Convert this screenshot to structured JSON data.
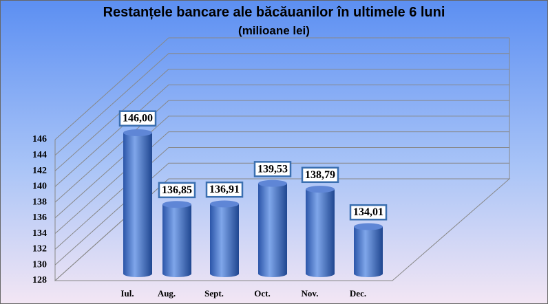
{
  "chart_data": {
    "type": "bar",
    "title": "Restanțele bancare ale băcăuanilor în ultimele 6 luni",
    "subtitle": "(milioane lei)",
    "categories": [
      "Iul.",
      "Aug.",
      "Sept.",
      "Oct.",
      "Nov.",
      "Dec."
    ],
    "values": [
      146.0,
      136.85,
      136.91,
      139.53,
      138.79,
      134.01
    ],
    "value_labels": [
      "146,00",
      "136,85",
      "136,91",
      "139,53",
      "138,79",
      "134,01"
    ],
    "color": "#3f6fc4",
    "ylim": [
      128,
      146
    ],
    "yticks": [
      128,
      130,
      132,
      134,
      136,
      138,
      140,
      142,
      144,
      146
    ],
    "grid": true
  }
}
